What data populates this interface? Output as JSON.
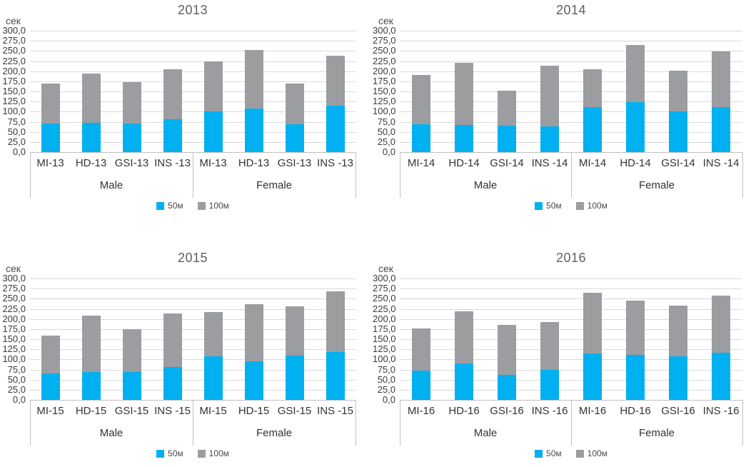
{
  "y_axis": {
    "label": "сек",
    "ticks": [
      "300,0",
      "275,0",
      "250,0",
      "225,0",
      "200,0",
      "175,0",
      "150,0",
      "125,0",
      "100,0",
      "75,0",
      "50,0",
      "25,0",
      "0,0"
    ],
    "max": 300,
    "step": 25
  },
  "colors": {
    "series_50m": "#00B0F0",
    "series_100m": "#9C9DA1",
    "gridline": "#D9D9D9",
    "axis_line": "#C0C0C0",
    "title_text": "#5F5F5F"
  },
  "chart_data": [
    {
      "type": "bar",
      "stacked": true,
      "title": "2013",
      "ylabel": "сек",
      "ylim": [
        0,
        300
      ],
      "grid": true,
      "legend_position": "bottom",
      "groups": [
        "Male",
        "Female"
      ],
      "categories": [
        "MI-13",
        "HD-13",
        "GSI-13",
        "INS -13",
        "MI-13",
        "HD-13",
        "GSI-13",
        "INS -13"
      ],
      "category_groups": [
        "Male",
        "Male",
        "Male",
        "Male",
        "Female",
        "Female",
        "Female",
        "Female"
      ],
      "series": [
        {
          "name": "50м",
          "values": [
            70,
            72,
            70,
            82,
            101,
            108,
            68,
            114
          ]
        },
        {
          "name": "100м",
          "values": [
            100,
            122,
            103,
            122,
            123,
            145,
            101,
            124
          ]
        }
      ],
      "stack_totals": [
        170,
        194,
        173,
        204,
        224,
        253,
        169,
        238
      ]
    },
    {
      "type": "bar",
      "stacked": true,
      "title": "2014",
      "ylabel": "сек",
      "ylim": [
        0,
        300
      ],
      "grid": true,
      "legend_position": "bottom",
      "groups": [
        "Male",
        "Female"
      ],
      "categories": [
        "MI-14",
        "HD-14",
        "GSI-14",
        "INS -14",
        "MI-14",
        "HD-14",
        "GSI-14",
        "INS -14"
      ],
      "category_groups": [
        "Male",
        "Male",
        "Male",
        "Male",
        "Female",
        "Female",
        "Female",
        "Female"
      ],
      "series": [
        {
          "name": "50м",
          "values": [
            68,
            67,
            65,
            63,
            111,
            123,
            100,
            111
          ]
        },
        {
          "name": "100м",
          "values": [
            123,
            153,
            86,
            150,
            94,
            141,
            101,
            137
          ]
        }
      ],
      "stack_totals": [
        191,
        220,
        151,
        213,
        205,
        264,
        201,
        248
      ]
    },
    {
      "type": "bar",
      "stacked": true,
      "title": "2015",
      "ylabel": "сек",
      "ylim": [
        0,
        300
      ],
      "grid": true,
      "legend_position": "bottom",
      "groups": [
        "Male",
        "Female"
      ],
      "categories": [
        "MI-15",
        "HD-15",
        "GSI-15",
        "INS -15",
        "MI-15",
        "HD-15",
        "GSI-15",
        "INS -15"
      ],
      "category_groups": [
        "Male",
        "Male",
        "Male",
        "Male",
        "Female",
        "Female",
        "Female",
        "Female"
      ],
      "series": [
        {
          "name": "50м",
          "values": [
            65,
            68,
            68,
            81,
            107,
            96,
            109,
            118
          ]
        },
        {
          "name": "100м",
          "values": [
            93,
            141,
            106,
            133,
            110,
            140,
            122,
            151
          ]
        }
      ],
      "stack_totals": [
        158,
        209,
        174,
        214,
        217,
        236,
        231,
        269
      ]
    },
    {
      "type": "bar",
      "stacked": true,
      "title": "2016",
      "ylabel": "сек",
      "ylim": [
        0,
        300
      ],
      "grid": true,
      "legend_position": "bottom",
      "groups": [
        "Male",
        "Female"
      ],
      "categories": [
        "MI-16",
        "HD-16",
        "GSI-16",
        "INS -16",
        "MI-16",
        "HD-16",
        "GSI-16",
        "INS -16"
      ],
      "category_groups": [
        "Male",
        "Male",
        "Male",
        "Male",
        "Female",
        "Female",
        "Female",
        "Female"
      ],
      "series": [
        {
          "name": "50м",
          "values": [
            73,
            90,
            62,
            74,
            114,
            112,
            108,
            117
          ]
        },
        {
          "name": "100м",
          "values": [
            104,
            128,
            124,
            118,
            150,
            133,
            125,
            141
          ]
        }
      ],
      "stack_totals": [
        177,
        218,
        186,
        192,
        264,
        245,
        233,
        258
      ]
    }
  ]
}
